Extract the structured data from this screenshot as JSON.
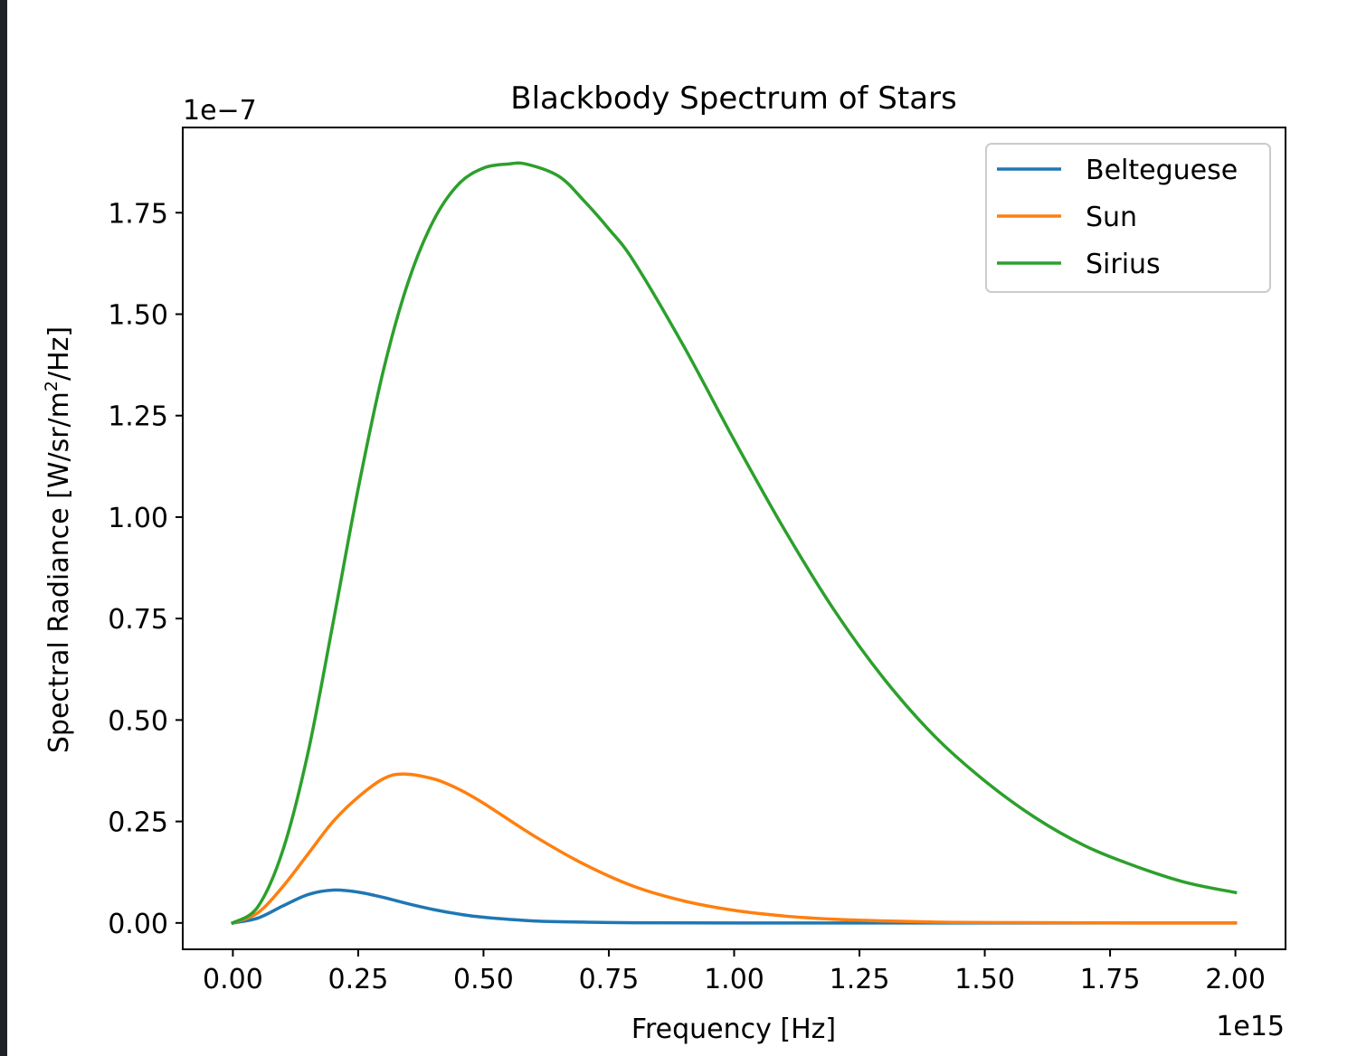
{
  "chart_data": {
    "type": "line",
    "title": "Blackbody Spectrum of Stars",
    "xlabel": "Frequency [Hz]",
    "ylabel": "Spectral Radiance [W/sr/m",
    "ylabel_superscript": "2",
    "ylabel_suffix": "/Hz]",
    "x_offset_label": "1e15",
    "y_offset_label": "1e−7",
    "xlim": [
      -0.1,
      2.1
    ],
    "ylim": [
      -0.065,
      1.96
    ],
    "x_scale": "1e15",
    "y_scale": "1e-7",
    "x_ticks": [
      0.0,
      0.25,
      0.5,
      0.75,
      1.0,
      1.25,
      1.5,
      1.75,
      2.0
    ],
    "x_tick_labels": [
      "0.00",
      "0.25",
      "0.50",
      "0.75",
      "1.00",
      "1.25",
      "1.50",
      "1.75",
      "2.00"
    ],
    "y_ticks": [
      0.0,
      0.25,
      0.5,
      0.75,
      1.0,
      1.25,
      1.5,
      1.75
    ],
    "y_tick_labels": [
      "0.00",
      "0.25",
      "0.50",
      "0.75",
      "1.00",
      "1.25",
      "1.50",
      "1.75"
    ],
    "grid": false,
    "legend_position": "top-right",
    "series": [
      {
        "name": "Belteguese",
        "color": "#1f77b4",
        "x": [
          0.0,
          0.05,
          0.1,
          0.15,
          0.2,
          0.25,
          0.3,
          0.35,
          0.4,
          0.45,
          0.5,
          0.6,
          0.7,
          0.8,
          1.0,
          1.25,
          1.5,
          1.75,
          2.0
        ],
        "y": [
          0.0,
          0.012,
          0.042,
          0.07,
          0.081,
          0.076,
          0.063,
          0.047,
          0.033,
          0.022,
          0.014,
          0.005,
          0.002,
          0.0005,
          0.0,
          0.0,
          0.0,
          0.0,
          0.0
        ]
      },
      {
        "name": "Sun",
        "color": "#ff7f0e",
        "x": [
          0.0,
          0.05,
          0.1,
          0.15,
          0.2,
          0.25,
          0.3,
          0.34,
          0.4,
          0.45,
          0.5,
          0.6,
          0.7,
          0.8,
          0.9,
          1.0,
          1.1,
          1.2,
          1.3,
          1.4,
          1.5,
          1.75,
          2.0
        ],
        "y": [
          0.0,
          0.025,
          0.09,
          0.17,
          0.25,
          0.31,
          0.355,
          0.367,
          0.355,
          0.33,
          0.295,
          0.215,
          0.145,
          0.09,
          0.054,
          0.031,
          0.017,
          0.009,
          0.005,
          0.002,
          0.001,
          0.0001,
          0.0
        ]
      },
      {
        "name": "Sirius",
        "color": "#2ca02c",
        "x": [
          0.0,
          0.05,
          0.1,
          0.15,
          0.2,
          0.25,
          0.3,
          0.35,
          0.4,
          0.45,
          0.5,
          0.55,
          0.585,
          0.65,
          0.7,
          0.75,
          0.8,
          0.9,
          1.0,
          1.1,
          1.2,
          1.3,
          1.4,
          1.5,
          1.6,
          1.7,
          1.8,
          1.9,
          2.0
        ],
        "y": [
          0.0,
          0.04,
          0.18,
          0.42,
          0.74,
          1.07,
          1.36,
          1.58,
          1.73,
          1.82,
          1.86,
          1.87,
          1.87,
          1.84,
          1.78,
          1.71,
          1.63,
          1.42,
          1.19,
          0.97,
          0.77,
          0.6,
          0.46,
          0.35,
          0.26,
          0.19,
          0.14,
          0.1,
          0.075
        ]
      }
    ]
  }
}
